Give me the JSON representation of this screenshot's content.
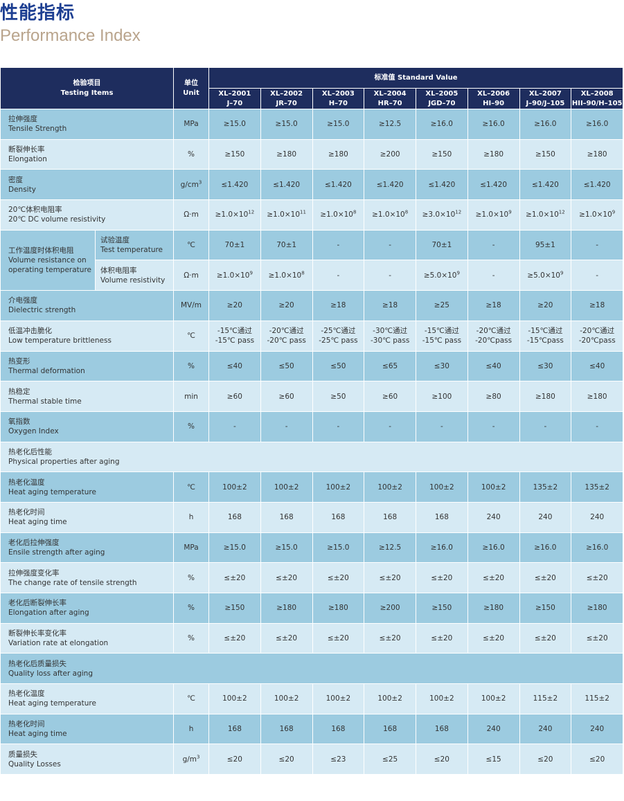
{
  "header": {
    "title": "性能指标",
    "subtitle": "Performance Index"
  },
  "table": {
    "head": {
      "item_cn": "检验项目",
      "item_en": "Testing Items",
      "unit_cn": "单位",
      "unit_en": "Unit",
      "standard": "标准值  Standard Value",
      "models": [
        [
          "XL–2001",
          "J–70"
        ],
        [
          "XL–2002",
          "JR–70"
        ],
        [
          "XL–2003",
          "H–70"
        ],
        [
          "XL–2004",
          "HR–70"
        ],
        [
          "XL–2005",
          "JGD–70"
        ],
        [
          "XL–2006",
          "HI–90"
        ],
        [
          "XL–2007",
          "J–90/J–105"
        ],
        [
          "XL–2008",
          "HII–90/H–105"
        ]
      ]
    },
    "rows": [
      {
        "cn": "拉伸强度",
        "en": "Tensile Strength",
        "unit": "MPa",
        "values": [
          "≥15.0",
          "≥15.0",
          "≥15.0",
          "≥12.5",
          "≥16.0",
          "≥16.0",
          "≥16.0",
          "≥16.0"
        ]
      },
      {
        "cn": "断裂伸长率",
        "en": "Elongation",
        "unit": "%",
        "values": [
          "≥150",
          "≥180",
          "≥180",
          "≥200",
          "≥150",
          "≥180",
          "≥150",
          "≥180"
        ]
      },
      {
        "cn": "密度",
        "en": "Density",
        "unit": {
          "text": "g/cm",
          "sup": "3"
        },
        "values": [
          "≤1.420",
          "≤1.420",
          "≤1.420",
          "≤1.420",
          "≤1.420",
          "≤1.420",
          "≤1.420",
          "≤1.420"
        ]
      },
      {
        "cn": "20℃体积电阻率",
        "en": "20℃  DC volume resistivity",
        "unit": "Ω·m",
        "values": [
          {
            "text": "≥1.0×10",
            "sup": "12"
          },
          {
            "text": "≥1.0×10",
            "sup": "11"
          },
          {
            "text": "≥1.0×10",
            "sup": "8"
          },
          {
            "text": "≥1.0×10",
            "sup": "8"
          },
          {
            "text": "≥3.0×10",
            "sup": "12"
          },
          {
            "text": "≥1.0×10",
            "sup": "9"
          },
          {
            "text": "≥1.0×10",
            "sup": "12"
          },
          {
            "text": "≥1.0×10",
            "sup": "9"
          }
        ]
      },
      {
        "cn": "工作温度时体积电阻",
        "en": "Volume resistance on operating temperature",
        "sub": [
          {
            "cn": "试验温度",
            "en": "Test temperature",
            "unit": "℃",
            "values": [
              "70±1",
              "70±1",
              "-",
              "-",
              "70±1",
              "-",
              "95±1",
              "-"
            ]
          },
          {
            "cn": "体积电阻率",
            "en": "Volume resistivity",
            "unit": "Ω·m",
            "values": [
              {
                "text": "≥1.0×10",
                "sup": "9"
              },
              {
                "text": "≥1.0×10",
                "sup": "8"
              },
              "-",
              "-",
              {
                "text": "≥5.0×10",
                "sup": "9"
              },
              "-",
              {
                "text": "≥5.0×10",
                "sup": "9"
              },
              "-"
            ]
          }
        ]
      },
      {
        "cn": "介电强度",
        "en": "Dielectric strength",
        "unit": "MV/m",
        "values": [
          "≥20",
          "≥20",
          "≥18",
          "≥18",
          "≥25",
          "≥18",
          "≥20",
          "≥18"
        ]
      },
      {
        "cn": "低温冲击脆化",
        "en": "Low temperature brittleness",
        "unit": "℃",
        "values": [
          [
            "-15℃通过",
            "-15℃  pass"
          ],
          [
            "-20℃通过",
            "-20℃  pass"
          ],
          [
            "-25℃通过",
            "-25℃  pass"
          ],
          [
            "-30℃通过",
            "-30℃ pass"
          ],
          [
            "-15℃通过",
            "-15℃  pass"
          ],
          [
            "-20℃通过",
            "-20℃pass"
          ],
          [
            "-15℃通过",
            "-15℃pass"
          ],
          [
            "-20℃通过",
            "-20℃pass"
          ]
        ]
      },
      {
        "cn": "热变形",
        "en": "Thermal deformation",
        "unit": "%",
        "values": [
          "≤40",
          "≤50",
          "≤50",
          "≤65",
          "≤30",
          "≤40",
          "≤30",
          "≤40"
        ]
      },
      {
        "cn": "热稳定",
        "en": "Thermal stable time",
        "unit": "min",
        "values": [
          "≥60",
          "≥60",
          "≥50",
          "≥60",
          "≥100",
          "≥80",
          "≥180",
          "≥180"
        ]
      },
      {
        "cn": "氧指数",
        "en": "Oxygen Index",
        "unit": "%",
        "values": [
          "-",
          "-",
          "-",
          "-",
          "-",
          "-",
          "-",
          "-"
        ]
      },
      {
        "cn": "热老化后性能",
        "en": "Physical properties after aging"
      },
      {
        "cn": "热老化温度",
        "en": "Heat aging temperature",
        "unit": "℃",
        "values": [
          "100±2",
          "100±2",
          "100±2",
          "100±2",
          "100±2",
          "100±2",
          "135±2",
          "135±2"
        ]
      },
      {
        "cn": "热老化时间",
        "en": "Heat aging time",
        "unit": "h",
        "values": [
          "168",
          "168",
          "168",
          "168",
          "168",
          "240",
          "240",
          "240"
        ]
      },
      {
        "cn": "老化后拉伸强度",
        "en": "Ensile strength after aging",
        "unit": "MPa",
        "values": [
          "≥15.0",
          "≥15.0",
          "≥15.0",
          "≥12.5",
          "≥16.0",
          "≥16.0",
          "≥16.0",
          "≥16.0"
        ]
      },
      {
        "cn": "拉伸强度变化率",
        "en": "The  change  rate  of  tensile strength",
        "unit": "%",
        "values": [
          "≤±20",
          "≤±20",
          "≤±20",
          "≤±20",
          "≤±20",
          "≤±20",
          "≤±20",
          "≤±20"
        ]
      },
      {
        "cn": "老化后断裂伸长率",
        "en": "Elongation after aging",
        "unit": "%",
        "values": [
          "≥150",
          "≥180",
          "≥180",
          "≥200",
          "≥150",
          "≥180",
          "≥150",
          "≥180"
        ]
      },
      {
        "cn": "断裂伸长率变化率",
        "en": "Variation rate at elongation",
        "unit": "%",
        "values": [
          "≤±20",
          "≤±20",
          "≤±20",
          "≤±20",
          "≤±20",
          "≤±20",
          "≤±20",
          "≤±20"
        ]
      },
      {
        "cn": "热老化后质量损失",
        "en": "Quality loss after aging"
      },
      {
        "cn": "热老化温度",
        "en": "Heat aging temperature",
        "unit": "℃",
        "values": [
          "100±2",
          "100±2",
          "100±2",
          "100±2",
          "100±2",
          "100±2",
          "115±2",
          "115±2"
        ]
      },
      {
        "cn": "热老化时间",
        "en": "Heat aging time",
        "unit": "h",
        "values": [
          "168",
          "168",
          "168",
          "168",
          "168",
          "240",
          "240",
          "240"
        ]
      },
      {
        "cn": "质量损失",
        "en": "Quality Losses",
        "unit": {
          "text": "g/m",
          "sup": "3"
        },
        "values": [
          "≤20",
          "≤20",
          "≤23",
          "≤25",
          "≤20",
          "≤15",
          "≤20",
          "≤20"
        ]
      }
    ]
  }
}
